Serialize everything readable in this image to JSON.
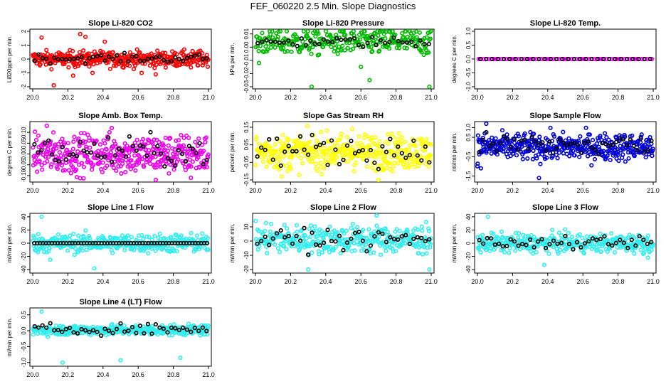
{
  "figure": {
    "title": "FEF_060220  2.5 Min. Slope Diagnostics"
  },
  "chart_data": [
    {
      "type": "scatter",
      "title": "Slope Li-820 CO2",
      "xlabel": "",
      "ylabel": "Li820ppm per min.",
      "xlim": [
        20.0,
        21.0
      ],
      "ylim": [
        -2,
        2
      ],
      "xticks": [
        "20.0",
        "20.2",
        "20.4",
        "20.6",
        "20.8",
        "21.0"
      ],
      "yticks": [
        {
          "v": -2,
          "label": "-2"
        },
        {
          "v": -1,
          "label": "-1"
        },
        {
          "v": 0,
          "label": "0"
        },
        {
          "v": 1,
          "label": "1"
        },
        {
          "v": 2,
          "label": "2"
        }
      ],
      "color": "#ff0000",
      "center": 0.0,
      "spread": 0.28,
      "outliers": [
        [
          20.05,
          1.55
        ],
        [
          20.23,
          -1.2
        ],
        [
          20.27,
          1.8
        ],
        [
          20.3,
          1.6
        ],
        [
          20.34,
          -1.0
        ],
        [
          20.12,
          -1.9
        ],
        [
          20.41,
          1.25
        ],
        [
          20.62,
          -1.0
        ],
        [
          20.7,
          -1.1
        ],
        [
          20.9,
          -0.6
        ]
      ],
      "black_center": 0.05,
      "black_spread": 0.15,
      "n_points": 380,
      "n_black": 45
    },
    {
      "type": "scatter",
      "title": "Slope Li-820 Pressure",
      "xlabel": "",
      "ylabel": "kPa per min.",
      "xlim": [
        20.0,
        21.0
      ],
      "ylim": [
        -0.03,
        0.012
      ],
      "xticks": [
        "20.0",
        "20.2",
        "20.4",
        "20.6",
        "20.8",
        "21.0"
      ],
      "yticks": [
        {
          "v": -0.03,
          "label": "-0.03"
        },
        {
          "v": -0.02,
          "label": "-0.02"
        },
        {
          "v": -0.01,
          "label": "-0.01"
        },
        {
          "v": 0.0,
          "label": "0.00"
        },
        {
          "v": 0.01,
          "label": "0.01"
        }
      ],
      "color": "#00bb00",
      "center": 0.004,
      "spread": 0.005,
      "outliers": [
        [
          20.02,
          -0.012
        ],
        [
          20.32,
          -0.03
        ],
        [
          20.65,
          -0.025
        ],
        [
          20.99,
          -0.03
        ],
        [
          20.78,
          0.012
        ],
        [
          20.6,
          -0.015
        ]
      ],
      "black_center": 0.004,
      "black_spread": 0.002,
      "n_points": 300,
      "n_black": 40
    },
    {
      "type": "scatter",
      "title": "Slope Li-820 Temp.",
      "xlabel": "",
      "ylabel": "degrees C per min.",
      "xlim": [
        20.0,
        21.0
      ],
      "ylim": [
        -1.0,
        1.0
      ],
      "xticks": [
        "20.0",
        "20.2",
        "20.4",
        "20.6",
        "20.8",
        "21.0"
      ],
      "yticks": [
        {
          "v": -1.0,
          "label": "-1.0"
        },
        {
          "v": -0.5,
          "label": "-0.5"
        },
        {
          "v": 0.0,
          "label": "0.0"
        },
        {
          "v": 0.5,
          "label": "0.5"
        },
        {
          "v": 1.0,
          "label": "1.0"
        }
      ],
      "color": "#ff00ff",
      "center": 0.0,
      "spread": 0.0,
      "outliers": [],
      "black_center": 0.0,
      "black_spread": 0.0,
      "n_points": 70,
      "n_black": 30
    },
    {
      "type": "scatter",
      "title": "Slope Amb. Box Temp.",
      "xlabel": "",
      "ylabel": "degrees C per min.",
      "xlim": [
        20.0,
        21.0
      ],
      "ylim": [
        -0.12,
        0.14
      ],
      "xticks": [
        "20.0",
        "20.2",
        "20.4",
        "20.6",
        "20.8",
        "21.0"
      ],
      "yticks": [
        {
          "v": -0.1,
          "label": "-0.10"
        },
        {
          "v": -0.05,
          "label": "-0.05"
        },
        {
          "v": 0.0,
          "label": "0.00"
        },
        {
          "v": 0.05,
          "label": "0.05"
        },
        {
          "v": 0.1,
          "label": "0.10"
        }
      ],
      "color": "#ee00ee",
      "center": 0.0,
      "spread": 0.045,
      "outliers": [
        [
          20.08,
          0.13
        ],
        [
          20.7,
          -0.12
        ],
        [
          20.45,
          0.12
        ],
        [
          20.9,
          -0.11
        ]
      ],
      "black_center": 0.01,
      "black_spread": 0.035,
      "n_points": 420,
      "n_black": 50
    },
    {
      "type": "scatter",
      "title": "Slope Gas Stream RH",
      "xlabel": "",
      "ylabel": "percent per min.",
      "xlim": [
        20.0,
        21.0
      ],
      "ylim": [
        -0.15,
        0.17
      ],
      "xticks": [
        "20.0",
        "20.2",
        "20.4",
        "20.6",
        "20.8",
        "21.0"
      ],
      "yticks": [
        {
          "v": -0.15,
          "label": "-0.15"
        },
        {
          "v": -0.05,
          "label": "-0.05"
        },
        {
          "v": 0.05,
          "label": "0.05"
        },
        {
          "v": 0.15,
          "label": "0.15"
        }
      ],
      "color": "#ffff00",
      "center": 0.01,
      "spread": 0.05,
      "outliers": [
        [
          20.7,
          -0.15
        ],
        [
          20.55,
          0.14
        ],
        [
          20.15,
          -0.13
        ]
      ],
      "black_center": 0.02,
      "black_spread": 0.045,
      "n_points": 420,
      "n_black": 45
    },
    {
      "type": "scatter",
      "title": "Slope Sample Flow",
      "xlabel": "",
      "ylabel": "ml/min per min.",
      "xlim": [
        20.0,
        21.0
      ],
      "ylim": [
        -1.7,
        1.2
      ],
      "xticks": [
        "20.0",
        "20.2",
        "20.4",
        "20.6",
        "20.8",
        "21.0"
      ],
      "yticks": [
        {
          "v": -1.5,
          "label": "-1.5"
        },
        {
          "v": -0.5,
          "label": "-0.5"
        },
        {
          "v": 0.5,
          "label": "0.5"
        },
        {
          "v": 1.0,
          "label": "1.0"
        }
      ],
      "color": "#0000dd",
      "center": 0.0,
      "spread": 0.35,
      "outliers": [
        [
          20.05,
          1.2
        ],
        [
          20.35,
          -1.6
        ],
        [
          20.0,
          -1.0
        ],
        [
          20.02,
          -1.1
        ]
      ],
      "black_center": 0.1,
      "black_spread": 0.3,
      "n_points": 420,
      "n_black": 50
    },
    {
      "type": "scatter",
      "title": "Slope Line 1 Flow",
      "xlabel": "",
      "ylabel": "ml/min per min.",
      "xlim": [
        20.0,
        21.0
      ],
      "ylim": [
        -42,
        42
      ],
      "xticks": [
        "20.0",
        "20.2",
        "20.4",
        "20.6",
        "20.8",
        "21.0"
      ],
      "yticks": [
        {
          "v": -40,
          "label": "-40"
        },
        {
          "v": -20,
          "label": "-20"
        },
        {
          "v": 0,
          "label": "0"
        },
        {
          "v": 20,
          "label": "20"
        },
        {
          "v": 40,
          "label": "40"
        }
      ],
      "color": "#33eeee",
      "center": 0.0,
      "spread": 7,
      "outliers": [
        [
          20.05,
          40
        ],
        [
          20.35,
          -38
        ],
        [
          20.1,
          -25
        ]
      ],
      "black_center": 0.0,
      "black_spread": 0.0,
      "n_points": 360,
      "n_black": 60
    },
    {
      "type": "scatter",
      "title": "Slope Line 2 Flow",
      "xlabel": "",
      "ylabel": "ml/min per min.",
      "xlim": [
        20.0,
        21.0
      ],
      "ylim": [
        -21,
        18
      ],
      "xticks": [
        "20.0",
        "20.2",
        "20.4",
        "20.6",
        "20.8",
        "21.0"
      ],
      "yticks": [
        {
          "v": -20,
          "label": "-20"
        },
        {
          "v": -10,
          "label": "-10"
        },
        {
          "v": 0,
          "label": "0"
        },
        {
          "v": 10,
          "label": "10"
        }
      ],
      "color": "#33eeee",
      "center": 1.0,
      "spread": 5,
      "outliers": [
        [
          20.69,
          18
        ],
        [
          20.09,
          12
        ],
        [
          20.3,
          -20
        ],
        [
          20.99,
          -20
        ]
      ],
      "black_center": 1.0,
      "black_spread": 3.5,
      "n_points": 360,
      "n_black": 45
    },
    {
      "type": "scatter",
      "title": "Slope Line 3 Flow",
      "xlabel": "",
      "ylabel": "ml/min per min.",
      "xlim": [
        20.0,
        21.0
      ],
      "ylim": [
        -42,
        42
      ],
      "xticks": [
        "20.0",
        "20.2",
        "20.4",
        "20.6",
        "20.8",
        "21.0"
      ],
      "yticks": [
        {
          "v": -40,
          "label": "-40"
        },
        {
          "v": -20,
          "label": "-20"
        },
        {
          "v": 0,
          "label": "0"
        },
        {
          "v": 20,
          "label": "20"
        },
        {
          "v": 40,
          "label": "40"
        }
      ],
      "color": "#33eeee",
      "center": 0.0,
      "spread": 7,
      "outliers": [
        [
          20.06,
          40
        ],
        [
          20.38,
          -33
        ],
        [
          20.97,
          -22
        ]
      ],
      "black_center": 0.0,
      "black_spread": 4,
      "n_points": 360,
      "n_black": 45
    },
    {
      "type": "scatter",
      "title": "Slope Line 4 (LT) Flow",
      "xlabel": "",
      "ylabel": "ml/min per min.",
      "xlim": [
        20.0,
        21.0
      ],
      "ylim": [
        -1.05,
        0.65
      ],
      "xticks": [
        "20.0",
        "20.2",
        "20.4",
        "20.6",
        "20.8",
        "21.0"
      ],
      "yticks": [
        {
          "v": -1.0,
          "label": "-1.0"
        },
        {
          "v": -0.5,
          "label": "-0.5"
        },
        {
          "v": 0.0,
          "label": "0.0"
        },
        {
          "v": 0.5,
          "label": "0.5"
        }
      ],
      "color": "#33eeee",
      "center": 0.02,
      "spread": 0.08,
      "outliers": [
        [
          20.17,
          -1.0
        ],
        [
          20.5,
          -0.93
        ],
        [
          20.84,
          -0.85
        ],
        [
          20.05,
          0.6
        ]
      ],
      "black_center": 0.05,
      "black_spread": 0.08,
      "n_points": 400,
      "n_black": 45
    }
  ]
}
